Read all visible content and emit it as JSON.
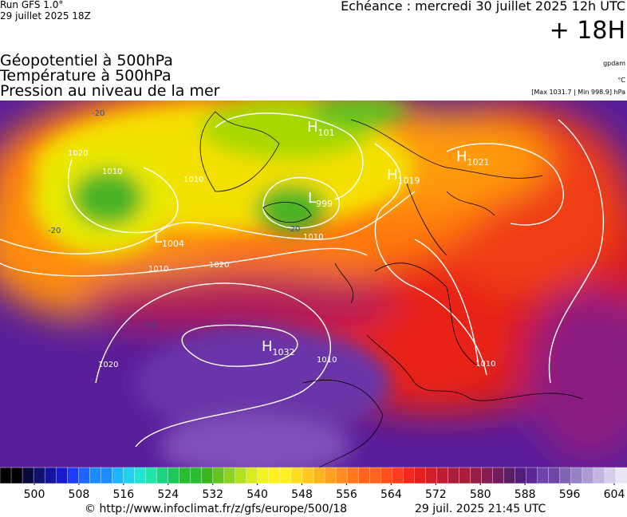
{
  "header": {
    "model": "Run GFS 1.0°",
    "run": "29 juillet 2025 18Z",
    "valid": "Echéance : mercredi 30 juillet 2025 12h UTC",
    "lead": "+ 18H"
  },
  "fields": [
    "Géopotentiel à 500hPa",
    "Température à 500hPa",
    "Pression au niveau de la mer"
  ],
  "units": {
    "geopotential": "gpdam",
    "temperature": "°C",
    "pressure": "[Max 1031.7 | Min 998.9] hPa"
  },
  "centers": [
    {
      "kind": "H",
      "value": "101"
    },
    {
      "kind": "H",
      "value": "1021"
    },
    {
      "kind": "H",
      "value": "1019"
    },
    {
      "kind": "L",
      "value": "999"
    },
    {
      "kind": "L",
      "value": "1004"
    },
    {
      "kind": "H",
      "value": "1032"
    }
  ],
  "isobar_labels": [
    "1020",
    "1010",
    "1010",
    "1020",
    "1020",
    "1010",
    "1010",
    "1010",
    "1010"
  ],
  "temperature_labels": [
    "-20",
    "-20",
    "-10",
    "-20"
  ],
  "colorbar": {
    "ticks": [
      500,
      508,
      516,
      524,
      532,
      540,
      548,
      556,
      564,
      572,
      580,
      588,
      596,
      604
    ]
  },
  "footer": {
    "source": "© http://www.infoclimat.fr/z/gfs/europe/500/18",
    "time": "29 juil. 2025 21:45 UTC"
  }
}
